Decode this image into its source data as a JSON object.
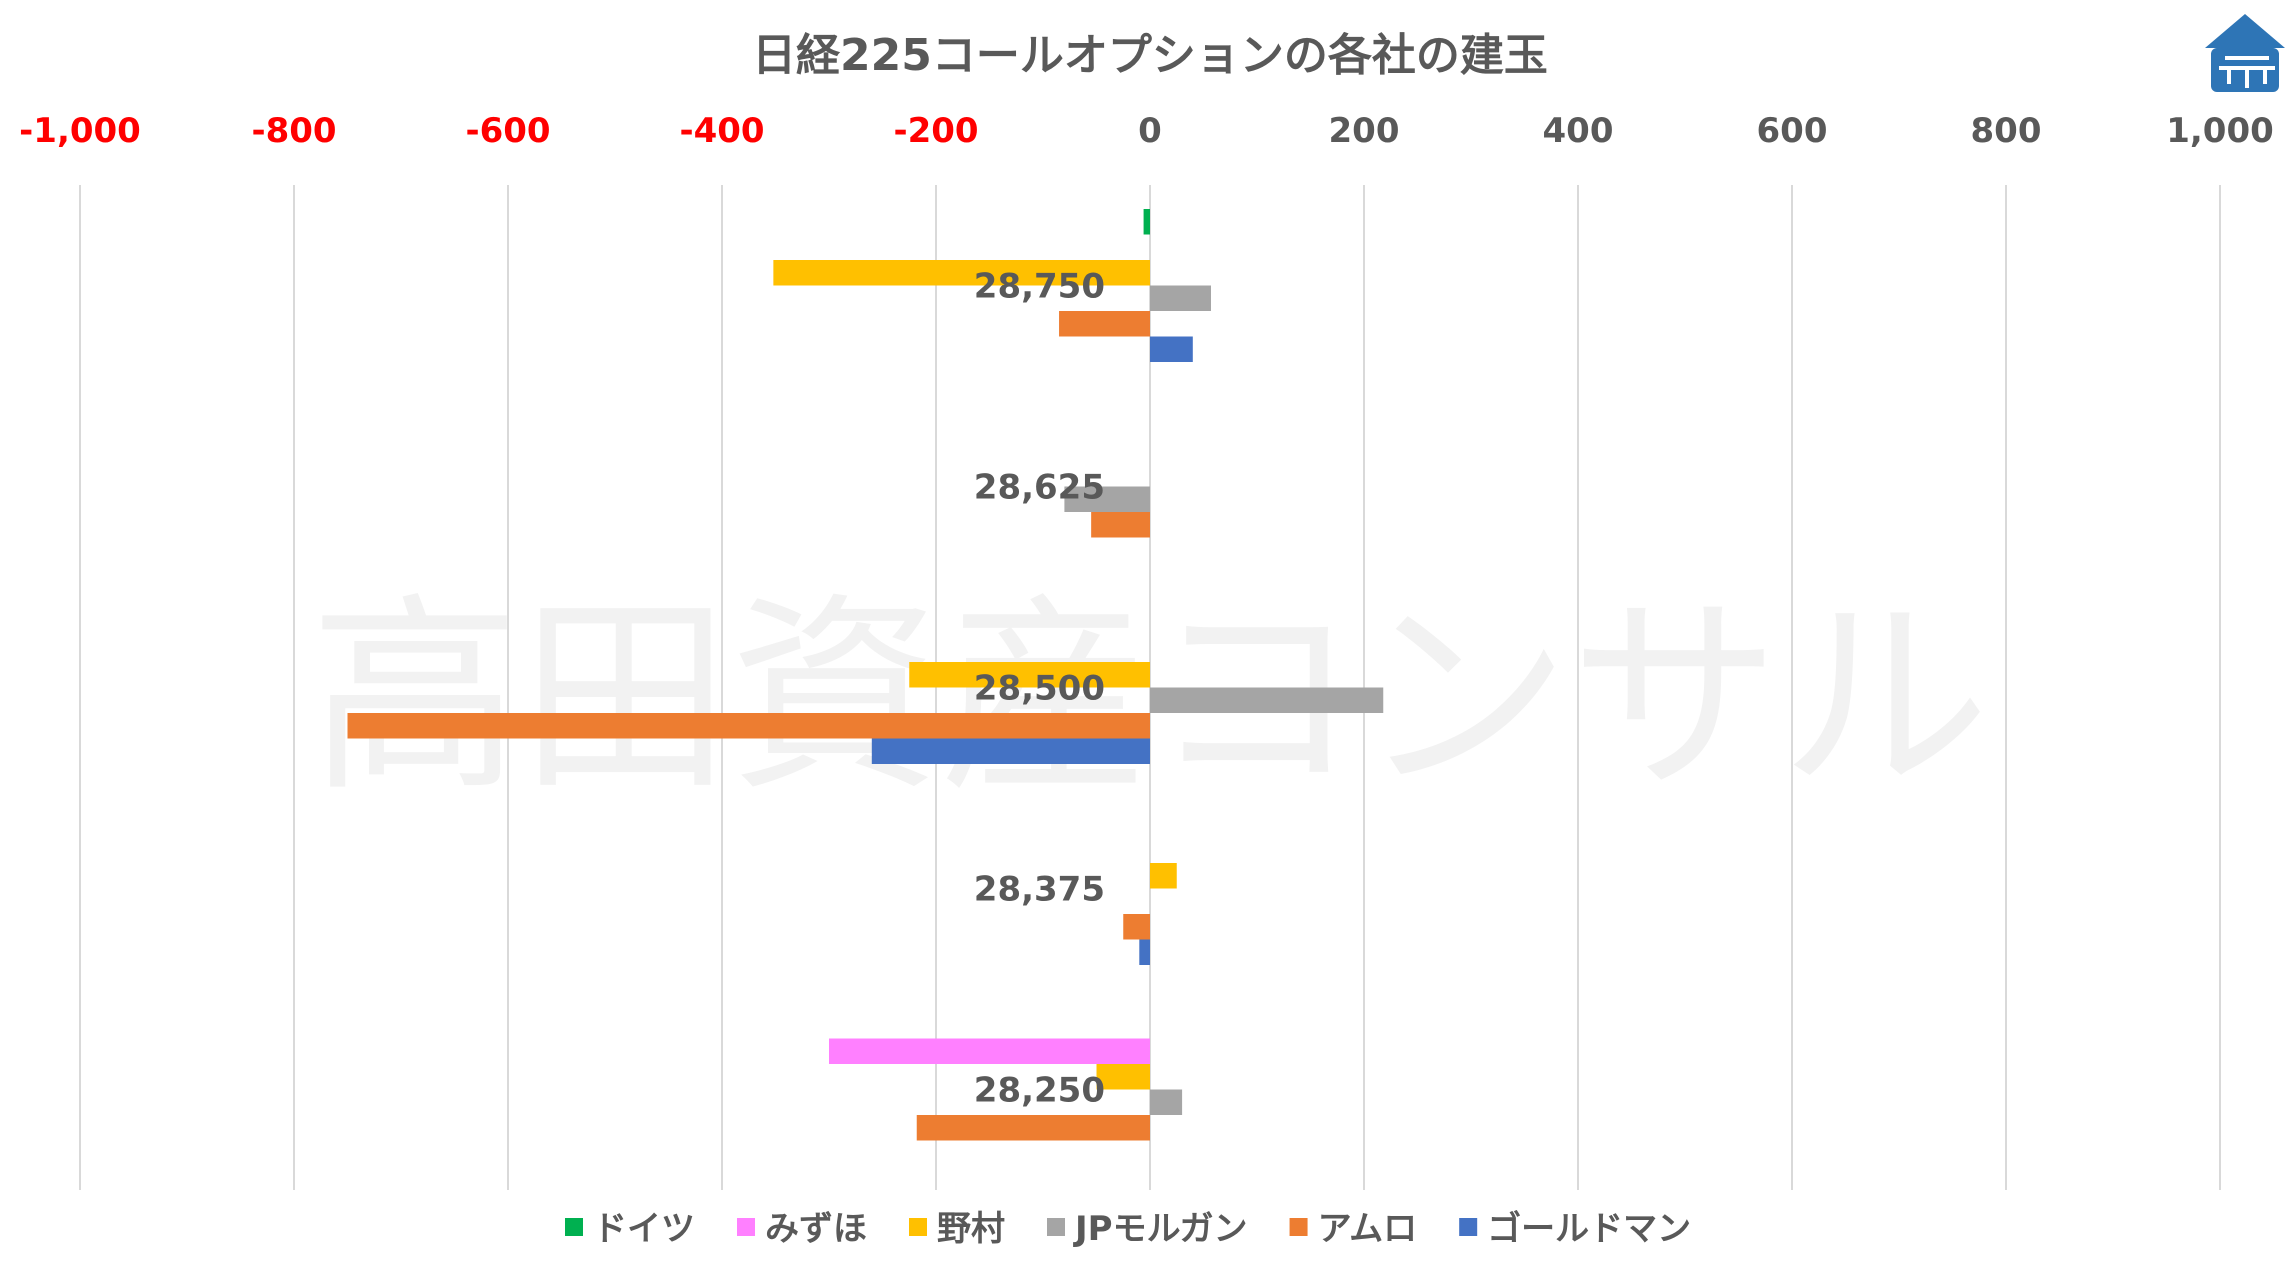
{
  "chart_data": {
    "type": "bar",
    "orientation": "horizontal",
    "title": "日経225コールオプションの各社の建玉",
    "xlim": [
      -1000,
      1000
    ],
    "x_ticks": [
      -1000,
      -800,
      -600,
      -400,
      -200,
      0,
      200,
      400,
      600,
      800,
      1000
    ],
    "x_tick_labels": [
      "-1,000",
      "-800",
      "-600",
      "-400",
      "-200",
      "0",
      "200",
      "400",
      "600",
      "800",
      "1,000"
    ],
    "negative_tick_color": "#ff0000",
    "positive_tick_color": "#595959",
    "categories": [
      "28,750",
      "28,625",
      "28,500",
      "28,375",
      "28,250"
    ],
    "series": [
      {
        "name": "ドイツ",
        "color": "#00b050",
        "values": [
          -6,
          0,
          0,
          0,
          0
        ]
      },
      {
        "name": "みずほ",
        "color": "#ff80ff",
        "values": [
          0,
          0,
          0,
          0,
          -300
        ]
      },
      {
        "name": "野村",
        "color": "#ffc000",
        "values": [
          -352,
          0,
          -225,
          25,
          -50
        ]
      },
      {
        "name": "JPモルガン",
        "color": "#a5a5a5",
        "values": [
          57,
          -80,
          218,
          0,
          30
        ]
      },
      {
        "name": "アムロ",
        "color": "#ed7d31",
        "values": [
          -85,
          -55,
          -750,
          -25,
          -218
        ]
      },
      {
        "name": "ゴールドマン",
        "color": "#4472c4",
        "values": [
          40,
          0,
          -260,
          -10,
          0
        ]
      }
    ],
    "gridlines": true,
    "legend_position": "bottom",
    "watermark": "高田資産コンサル"
  }
}
